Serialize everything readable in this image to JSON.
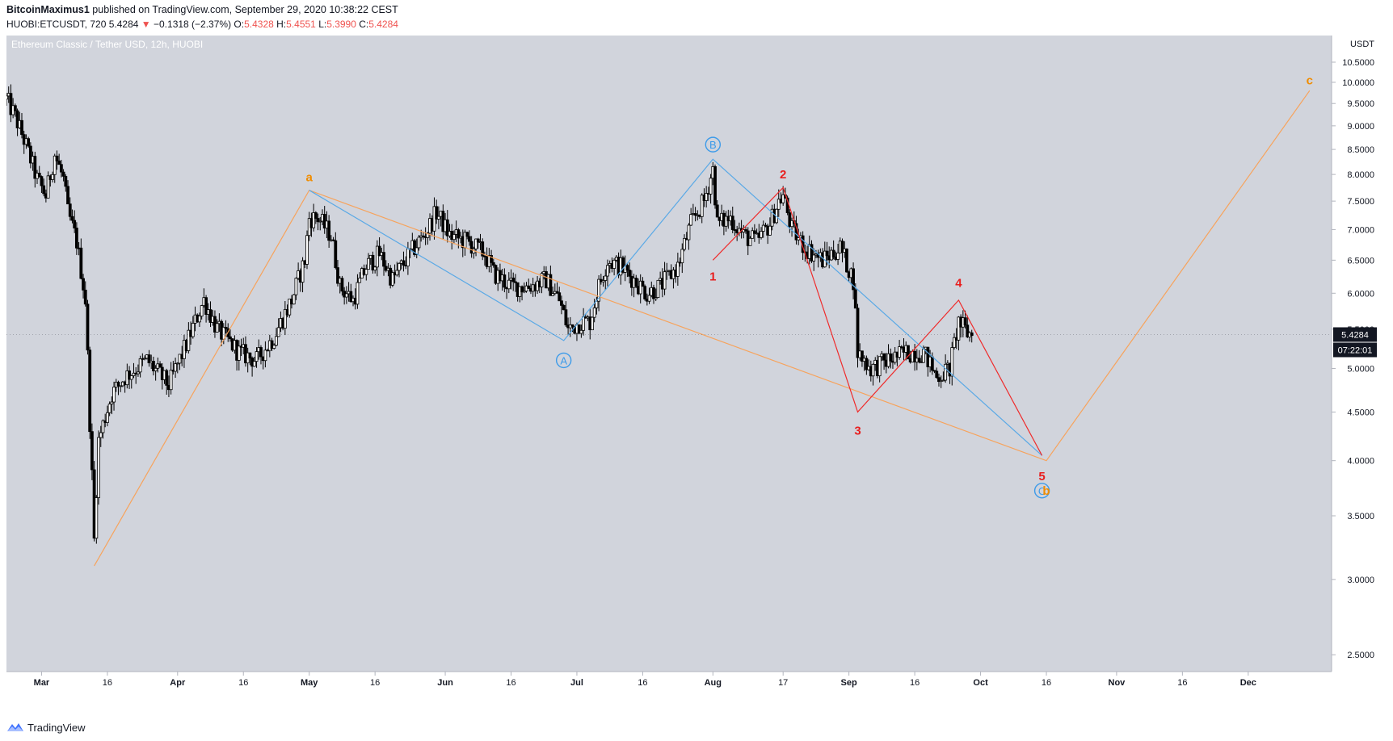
{
  "header": {
    "publisher": "BitcoinMaximus1",
    "published_text": "published on TradingView.com, September 29, 2020 10:38:22 CEST",
    "symbol": "HUOBI:ETCUSDT, 720",
    "last": "5.4284",
    "arrow": "▼",
    "change": "−0.1318 (−2.37%)",
    "o_label": "O:",
    "o_value": "5.4328",
    "h_label": "H:",
    "h_value": "5.4551",
    "l_label": "L:",
    "l_value": "5.3990",
    "c_label": "C:",
    "c_value": "5.4284"
  },
  "footer": {
    "brand": "TradingView",
    "logo_icon": "tradingview-logo-icon"
  },
  "colors": {
    "plot_bg": "#d1d4dc",
    "candle": "#000000",
    "orange": "#f7a35c",
    "blue": "#5aa9e6",
    "red": "#ef2b2b",
    "orange_text": "#f08c00",
    "blue_text": "#3d9be9",
    "red_text": "#e81e1e",
    "price_tag_bg": "#131722"
  },
  "chart_data": {
    "type": "candlestick",
    "title": "Ethereum Classic / Tether USD, 12h, HUOBI",
    "ylabel": "USDT",
    "yscale": "log",
    "ylim": [
      2.4,
      11.2
    ],
    "xlim": [
      "2020-02-22",
      "2020-12-20"
    ],
    "yticks": [
      "10.5000",
      "10.0000",
      "9.5000",
      "9.0000",
      "8.5000",
      "8.0000",
      "7.5000",
      "7.0000",
      "6.5000",
      "6.0000",
      "5.5000",
      "5.0000",
      "4.5000",
      "4.0000",
      "3.5000",
      "3.0000",
      "2.5000"
    ],
    "xticks": [
      {
        "label": "Mar",
        "date": "2020-03-01"
      },
      {
        "label": "16",
        "date": "2020-03-16"
      },
      {
        "label": "Apr",
        "date": "2020-04-01"
      },
      {
        "label": "16",
        "date": "2020-04-16"
      },
      {
        "label": "May",
        "date": "2020-05-01"
      },
      {
        "label": "16",
        "date": "2020-05-16"
      },
      {
        "label": "Jun",
        "date": "2020-06-01"
      },
      {
        "label": "16",
        "date": "2020-06-16"
      },
      {
        "label": "Jul",
        "date": "2020-07-01"
      },
      {
        "label": "16",
        "date": "2020-07-16"
      },
      {
        "label": "Aug",
        "date": "2020-08-01"
      },
      {
        "label": "17",
        "date": "2020-08-17"
      },
      {
        "label": "Sep",
        "date": "2020-09-01"
      },
      {
        "label": "16",
        "date": "2020-09-16"
      },
      {
        "label": "Oct",
        "date": "2020-10-01"
      },
      {
        "label": "16",
        "date": "2020-10-16"
      },
      {
        "label": "Nov",
        "date": "2020-11-01"
      },
      {
        "label": "16",
        "date": "2020-11-16"
      },
      {
        "label": "Dec",
        "date": "2020-12-01"
      }
    ],
    "price_path": [
      [
        "2020-02-22",
        9.6
      ],
      [
        "2020-02-24",
        9.2
      ],
      [
        "2020-02-26",
        8.7
      ],
      [
        "2020-02-29",
        7.9
      ],
      [
        "2020-03-02",
        7.6
      ],
      [
        "2020-03-04",
        8.4
      ],
      [
        "2020-03-06",
        7.9
      ],
      [
        "2020-03-07",
        7.3
      ],
      [
        "2020-03-09",
        6.8
      ],
      [
        "2020-03-11",
        5.9
      ],
      [
        "2020-03-12",
        4.4
      ],
      [
        "2020-03-13",
        3.3
      ],
      [
        "2020-03-14",
        4.2
      ],
      [
        "2020-03-17",
        4.7
      ],
      [
        "2020-03-20",
        4.9
      ],
      [
        "2020-03-25",
        5.1
      ],
      [
        "2020-03-30",
        4.8
      ],
      [
        "2020-04-03",
        5.3
      ],
      [
        "2020-04-07",
        5.9
      ],
      [
        "2020-04-10",
        5.5
      ],
      [
        "2020-04-15",
        5.2
      ],
      [
        "2020-04-19",
        5.1
      ],
      [
        "2020-04-23",
        5.4
      ],
      [
        "2020-04-27",
        5.9
      ],
      [
        "2020-04-30",
        6.5
      ],
      [
        "2020-05-01",
        7.2
      ],
      [
        "2020-05-03",
        7.2
      ],
      [
        "2020-05-06",
        6.9
      ],
      [
        "2020-05-08",
        6.1
      ],
      [
        "2020-05-11",
        5.9
      ],
      [
        "2020-05-14",
        6.4
      ],
      [
        "2020-05-17",
        6.6
      ],
      [
        "2020-05-20",
        6.2
      ],
      [
        "2020-05-24",
        6.6
      ],
      [
        "2020-05-28",
        7.0
      ],
      [
        "2020-05-30",
        7.3
      ],
      [
        "2020-06-02",
        6.9
      ],
      [
        "2020-06-06",
        6.8
      ],
      [
        "2020-06-10",
        6.6
      ],
      [
        "2020-06-12",
        6.3
      ],
      [
        "2020-06-16",
        6.1
      ],
      [
        "2020-06-20",
        6.1
      ],
      [
        "2020-06-24",
        6.2
      ],
      [
        "2020-06-27",
        5.9
      ],
      [
        "2020-06-29",
        5.5
      ],
      [
        "2020-07-02",
        5.6
      ],
      [
        "2020-07-04",
        5.6
      ],
      [
        "2020-07-06",
        6.1
      ],
      [
        "2020-07-08",
        6.5
      ],
      [
        "2020-07-11",
        6.4
      ],
      [
        "2020-07-14",
        6.2
      ],
      [
        "2020-07-17",
        6.0
      ],
      [
        "2020-07-20",
        6.1
      ],
      [
        "2020-07-24",
        6.4
      ],
      [
        "2020-07-27",
        7.1
      ],
      [
        "2020-07-30",
        7.5
      ],
      [
        "2020-08-01",
        8.1
      ],
      [
        "2020-08-02",
        7.1
      ],
      [
        "2020-08-05",
        7.2
      ],
      [
        "2020-08-08",
        6.9
      ],
      [
        "2020-08-11",
        6.8
      ],
      [
        "2020-08-14",
        7.1
      ],
      [
        "2020-08-16",
        7.5
      ],
      [
        "2020-08-17",
        7.6
      ],
      [
        "2020-08-19",
        7.0
      ],
      [
        "2020-08-22",
        6.7
      ],
      [
        "2020-08-26",
        6.5
      ],
      [
        "2020-08-30",
        6.7
      ],
      [
        "2020-09-02",
        6.2
      ],
      [
        "2020-09-03",
        5.2
      ],
      [
        "2020-09-06",
        5.0
      ],
      [
        "2020-09-10",
        5.1
      ],
      [
        "2020-09-14",
        5.2
      ],
      [
        "2020-09-18",
        5.2
      ],
      [
        "2020-09-21",
        4.9
      ],
      [
        "2020-09-24",
        5.0
      ],
      [
        "2020-09-26",
        5.6
      ],
      [
        "2020-09-28",
        5.45
      ],
      [
        "2020-09-29",
        5.43
      ]
    ],
    "wave_lines": [
      {
        "name": "orange",
        "points": [
          [
            "2020-03-13",
            3.1
          ],
          [
            "2020-05-01",
            7.7
          ],
          [
            "2020-10-16",
            4.0
          ],
          [
            "2020-12-15",
            9.8
          ]
        ]
      },
      {
        "name": "blue",
        "points": [
          [
            "2020-05-01",
            7.7
          ],
          [
            "2020-06-28",
            5.35
          ],
          [
            "2020-08-01",
            8.3
          ],
          [
            "2020-10-15",
            4.05
          ]
        ]
      },
      {
        "name": "red",
        "points": [
          [
            "2020-08-01",
            6.5
          ],
          [
            "2020-08-17",
            7.75
          ],
          [
            "2020-09-03",
            4.5
          ],
          [
            "2020-09-26",
            5.9
          ],
          [
            "2020-10-15",
            4.05
          ]
        ]
      }
    ],
    "annotations": [
      {
        "text": "a",
        "date": "2020-05-01",
        "price": 7.95,
        "color": "orange",
        "circled": false
      },
      {
        "text": "A",
        "date": "2020-06-28",
        "price": 5.1,
        "color": "blue",
        "circled": true
      },
      {
        "text": "B",
        "date": "2020-08-01",
        "price": 8.6,
        "color": "blue",
        "circled": true
      },
      {
        "text": "1",
        "date": "2020-08-01",
        "price": 6.25,
        "color": "red",
        "circled": false
      },
      {
        "text": "2",
        "date": "2020-08-17",
        "price": 8.0,
        "color": "red",
        "circled": false
      },
      {
        "text": "3",
        "date": "2020-09-03",
        "price": 4.3,
        "color": "red",
        "circled": false
      },
      {
        "text": "4",
        "date": "2020-09-26",
        "price": 6.15,
        "color": "red",
        "circled": false
      },
      {
        "text": "5",
        "date": "2020-10-15",
        "price": 3.85,
        "color": "red",
        "circled": false
      },
      {
        "text": "C",
        "date": "2020-10-15",
        "price": 3.72,
        "color": "blue",
        "circled": true
      },
      {
        "text": "b",
        "date": "2020-10-16",
        "price": 3.72,
        "color": "orange",
        "circled": false
      },
      {
        "text": "c",
        "date": "2020-12-15",
        "price": 10.05,
        "color": "orange",
        "circled": false
      }
    ],
    "last_price": {
      "value": "5.4284",
      "countdown": "07:22:01"
    }
  }
}
